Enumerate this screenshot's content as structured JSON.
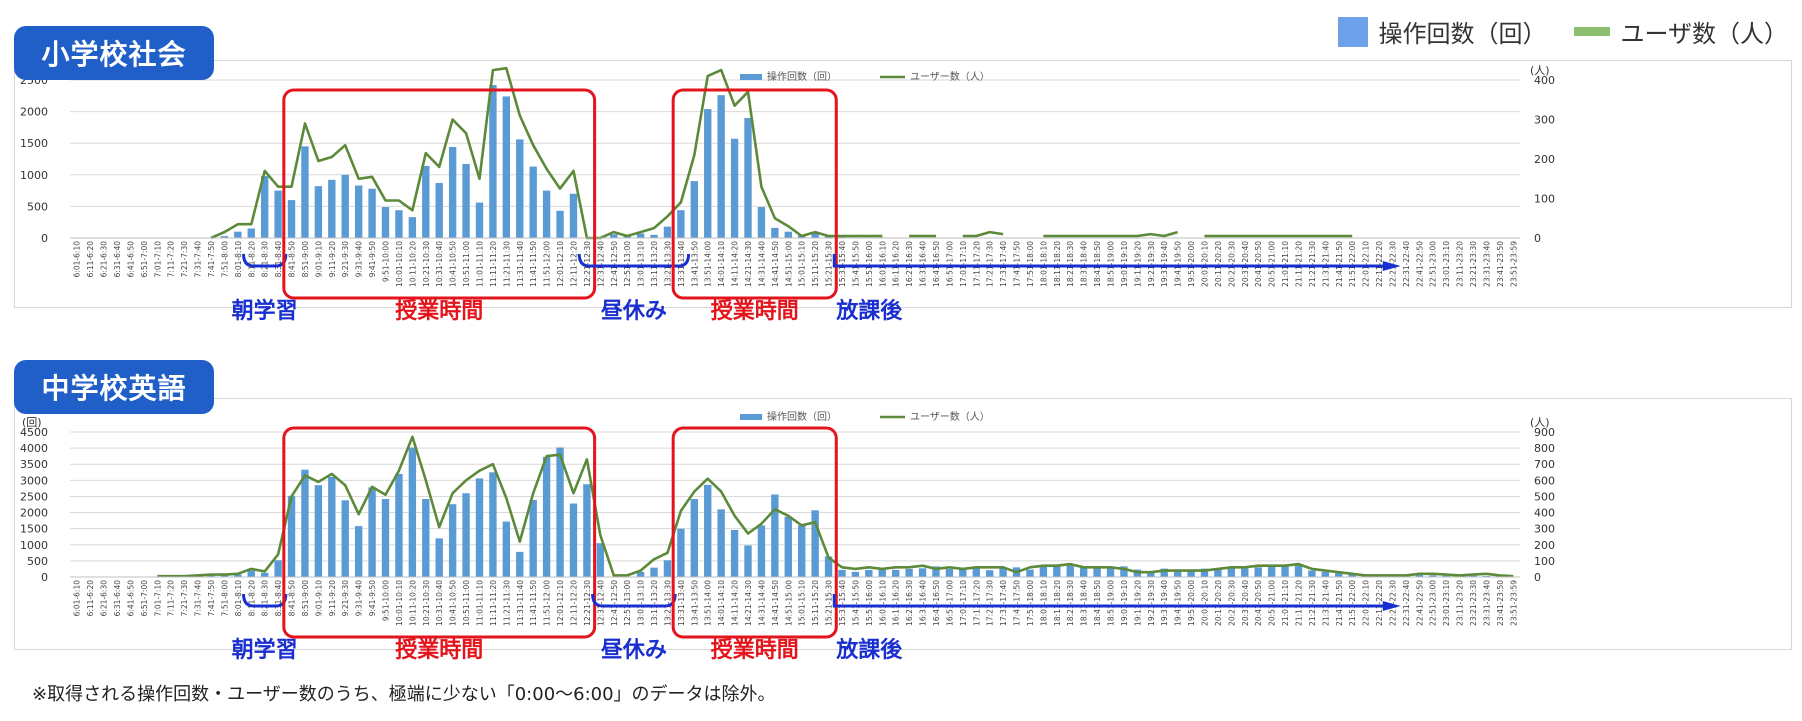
{
  "legend": {
    "ops_label": "操作回数（回）",
    "users_label": "ユーザ数（人）",
    "ops_color": "#6fa0ea",
    "users_color": "#8cc06e"
  },
  "footnote": "※取得される操作回数・ユーザー数のうち、極端に少ない「0:00〜6:00」のデータは除外。",
  "colors": {
    "badge": "#1f5fc7",
    "segment_red": "#e3141c",
    "segment_blue": "#1a2fd0",
    "bar": "#5b9bd5",
    "line": "#5c8a3a"
  },
  "chart_data": [
    {
      "title": "小学校社会",
      "type": "bar+line",
      "legend_inner": [
        "操作回数（回）",
        "ユーザー数（人）"
      ],
      "y_left_unit": "(回)",
      "y_right_unit": "(人)",
      "ylim_left": [
        0,
        2500
      ],
      "yticks_left": [
        0,
        500,
        1000,
        1500,
        2000,
        2500
      ],
      "ylim_right": [
        0,
        400
      ],
      "yticks_right": [
        0,
        100,
        200,
        300,
        400
      ],
      "categories": [
        "6:01-6:10",
        "6:11-6:20",
        "6:21-6:30",
        "6:31-6:40",
        "6:41-6:50",
        "6:51-7:00",
        "7:01-7:10",
        "7:11-7:20",
        "7:21-7:30",
        "7:31-7:40",
        "7:41-7:50",
        "7:51-8:00",
        "8:01-8:10",
        "8:11-8:20",
        "8:21-8:30",
        "8:31-8:40",
        "8:41-8:50",
        "8:51-9:00",
        "9:01-9:10",
        "9:11-9:20",
        "9:21-9:30",
        "9:31-9:40",
        "9:41-9:50",
        "9:51-10:00",
        "10:01-10:10",
        "10:11-10:20",
        "10:21-10:30",
        "10:31-10:40",
        "10:41-10:50",
        "10:51-11:00",
        "11:01-11:10",
        "11:11-11:20",
        "11:21-11:30",
        "11:31-11:40",
        "11:41-11:50",
        "11:51-12:00",
        "12:01-12:10",
        "12:11-12:20",
        "12:21-12:30",
        "12:31-12:40",
        "12:41-12:50",
        "12:51-13:00",
        "13:01-13:10",
        "13:11-13:20",
        "13:21-13:30",
        "13:31-13:40",
        "13:41-13:50",
        "13:51-14:00",
        "14:01-14:10",
        "14:11-14:20",
        "14:21-14:30",
        "14:31-14:40",
        "14:41-14:50",
        "14:51-15:00",
        "15:01-15:10",
        "15:11-15:20",
        "15:21-15:30",
        "15:31-15:40",
        "15:41-15:50",
        "15:51-16:00",
        "16:01-16:10",
        "16:11-16:20",
        "16:21-16:30",
        "16:31-16:40",
        "16:41-16:50",
        "16:51-17:00",
        "17:01-17:10",
        "17:11-17:20",
        "17:21-17:30",
        "17:31-17:40",
        "17:41-17:50",
        "17:51-18:00",
        "18:01-18:10",
        "18:11-18:20",
        "18:21-18:30",
        "18:31-18:40",
        "18:41-18:50",
        "18:51-19:00",
        "19:01-19:10",
        "19:11-19:20",
        "19:21-19:30",
        "19:31-19:40",
        "19:41-19:50",
        "19:51-20:00",
        "20:01-20:10",
        "20:11-20:20",
        "20:21-20:30",
        "20:31-20:40",
        "20:41-20:50",
        "20:51-21:00",
        "21:01-21:10",
        "21:11-21:20",
        "21:21-21:30",
        "21:31-21:40",
        "21:41-21:50",
        "21:51-22:00",
        "22:01-22:10",
        "22:11-22:20",
        "22:21-22:30",
        "22:31-22:40",
        "22:41-22:50",
        "22:51-23:00",
        "23:01-23:10",
        "23:11-23:20",
        "23:21-23:30",
        "23:31-23:40",
        "23:41-23:50",
        "23:51-23:59"
      ],
      "series": [
        {
          "name": "操作回数（回）",
          "kind": "bar",
          "axis": "left",
          "values": [
            0,
            0,
            0,
            0,
            0,
            0,
            0,
            0,
            0,
            0,
            0,
            30,
            100,
            150,
            980,
            750,
            600,
            1450,
            820,
            920,
            1000,
            830,
            780,
            490,
            440,
            330,
            1140,
            870,
            1440,
            1170,
            560,
            2420,
            2240,
            1560,
            1130,
            750,
            430,
            700,
            0,
            0,
            60,
            50,
            70,
            50,
            180,
            440,
            900,
            2040,
            2260,
            1570,
            1900,
            490,
            160,
            100,
            40,
            90,
            40,
            20,
            10,
            10,
            10,
            5,
            5,
            5,
            5,
            5,
            5,
            5,
            5,
            5,
            5,
            5,
            5,
            5,
            5,
            5,
            5,
            5,
            5,
            5,
            5,
            5,
            5,
            5,
            5,
            5,
            5,
            5,
            5,
            5,
            5,
            5,
            5,
            5,
            5,
            5,
            0,
            0,
            0,
            0,
            0,
            0,
            0,
            0,
            0,
            0,
            0,
            0
          ]
        },
        {
          "name": "ユーザー数（人）",
          "kind": "line",
          "axis": "right",
          "values": [
            null,
            null,
            null,
            null,
            null,
            null,
            null,
            null,
            null,
            null,
            0,
            15,
            35,
            35,
            170,
            130,
            130,
            290,
            195,
            205,
            235,
            150,
            155,
            95,
            95,
            70,
            215,
            180,
            300,
            265,
            150,
            425,
            430,
            310,
            235,
            175,
            125,
            170,
            0,
            0,
            15,
            5,
            15,
            25,
            55,
            90,
            210,
            410,
            425,
            335,
            370,
            130,
            50,
            30,
            5,
            15,
            5,
            5,
            5,
            5,
            5,
            null,
            5,
            5,
            5,
            null,
            5,
            5,
            15,
            10,
            null,
            null,
            5,
            5,
            5,
            5,
            5,
            5,
            5,
            5,
            10,
            5,
            15,
            null,
            5,
            5,
            5,
            5,
            5,
            5,
            5,
            5,
            5,
            5,
            5,
            5,
            null,
            null,
            null,
            null,
            null,
            null,
            null,
            null,
            null,
            null,
            null,
            null
          ]
        }
      ],
      "segments": [
        {
          "label": "朝学習",
          "color": "blue",
          "start": "8:11-8:20",
          "end": "8:31-8:40"
        },
        {
          "label": "授業時間",
          "color": "red",
          "start": "8:41-8:50",
          "end": "12:21-12:30"
        },
        {
          "label": "昼休み",
          "color": "blue",
          "start": "12:21-12:30",
          "end": "13:31-13:40"
        },
        {
          "label": "授業時間",
          "color": "red",
          "start": "13:31-13:40",
          "end": "15:21-15:30"
        },
        {
          "label": "放課後",
          "color": "blue",
          "start": "15:31-15:40",
          "end": "22:11-22:20",
          "arrow": true
        }
      ]
    },
    {
      "title": "中学校英語",
      "type": "bar+line",
      "legend_inner": [
        "操作回数（回）",
        "ユーザー数（人）"
      ],
      "y_left_unit": "(回)",
      "y_right_unit": "(人)",
      "ylim_left": [
        0,
        4500
      ],
      "yticks_left": [
        0,
        500,
        1000,
        1500,
        2000,
        2500,
        3000,
        3500,
        4000,
        4500
      ],
      "ylim_right": [
        0,
        900
      ],
      "yticks_right": [
        0,
        100,
        200,
        300,
        400,
        500,
        600,
        700,
        800,
        900
      ],
      "categories": [
        "6:01-6:10",
        "6:11-6:20",
        "6:21-6:30",
        "6:31-6:40",
        "6:41-6:50",
        "6:51-7:00",
        "7:01-7:10",
        "7:11-7:20",
        "7:21-7:30",
        "7:31-7:40",
        "7:41-7:50",
        "7:51-8:00",
        "8:01-8:10",
        "8:11-8:20",
        "8:21-8:30",
        "8:31-8:40",
        "8:41-8:50",
        "8:51-9:00",
        "9:01-9:10",
        "9:11-9:20",
        "9:21-9:30",
        "9:31-9:40",
        "9:41-9:50",
        "9:51-10:00",
        "10:01-10:10",
        "10:11-10:20",
        "10:21-10:30",
        "10:31-10:40",
        "10:41-10:50",
        "10:51-11:00",
        "11:01-11:10",
        "11:11-11:20",
        "11:21-11:30",
        "11:31-11:40",
        "11:41-11:50",
        "11:51-12:00",
        "12:01-12:10",
        "12:11-12:20",
        "12:21-12:30",
        "12:31-12:40",
        "12:41-12:50",
        "12:51-13:00",
        "13:01-13:10",
        "13:11-13:20",
        "13:21-13:30",
        "13:31-13:40",
        "13:41-13:50",
        "13:51-14:00",
        "14:01-14:10",
        "14:11-14:20",
        "14:21-14:30",
        "14:31-14:40",
        "14:41-14:50",
        "14:51-15:00",
        "15:01-15:10",
        "15:11-15:20",
        "15:21-15:30",
        "15:31-15:40",
        "15:41-15:50",
        "15:51-16:00",
        "16:01-16:10",
        "16:11-16:20",
        "16:21-16:30",
        "16:31-16:40",
        "16:41-16:50",
        "16:51-17:00",
        "17:01-17:10",
        "17:11-17:20",
        "17:21-17:30",
        "17:31-17:40",
        "17:41-17:50",
        "17:51-18:00",
        "18:01-18:10",
        "18:11-18:20",
        "18:21-18:30",
        "18:31-18:40",
        "18:41-18:50",
        "18:51-19:00",
        "19:01-19:10",
        "19:11-19:20",
        "19:21-19:30",
        "19:31-19:40",
        "19:41-19:50",
        "19:51-20:00",
        "20:01-20:10",
        "20:11-20:20",
        "20:21-20:30",
        "20:31-20:40",
        "20:41-20:50",
        "20:51-21:00",
        "21:01-21:10",
        "21:11-21:20",
        "21:21-21:30",
        "21:31-21:40",
        "21:41-21:50",
        "21:51-22:00",
        "22:01-22:10",
        "22:11-22:20",
        "22:21-22:30",
        "22:31-22:40",
        "22:41-22:50",
        "22:51-23:00",
        "23:01-23:10",
        "23:11-23:20",
        "23:21-23:30",
        "23:31-23:40",
        "23:41-23:50",
        "23:51-23:59"
      ],
      "series": [
        {
          "name": "操作回数（回）",
          "kind": "bar",
          "axis": "left",
          "values": [
            0,
            0,
            0,
            0,
            0,
            0,
            10,
            10,
            20,
            30,
            50,
            60,
            80,
            200,
            130,
            520,
            2520,
            3330,
            2850,
            3110,
            2380,
            1580,
            2780,
            2420,
            3200,
            4020,
            2420,
            1200,
            2260,
            2600,
            3060,
            3250,
            1720,
            780,
            2390,
            3730,
            4020,
            2280,
            2880,
            1050,
            0,
            20,
            160,
            290,
            520,
            1500,
            2420,
            2860,
            2100,
            1460,
            980,
            1600,
            2560,
            1870,
            1600,
            2070,
            640,
            220,
            160,
            220,
            220,
            220,
            250,
            270,
            330,
            250,
            280,
            300,
            210,
            270,
            300,
            230,
            330,
            330,
            360,
            330,
            330,
            300,
            330,
            230,
            140,
            260,
            210,
            200,
            260,
            270,
            300,
            290,
            300,
            320,
            330,
            380,
            200,
            160,
            120,
            90,
            60,
            40,
            40,
            60,
            60,
            50,
            40,
            40,
            40,
            30,
            20,
            10
          ]
        },
        {
          "name": "ユーザー数（人）",
          "kind": "line",
          "axis": "right",
          "values": [
            null,
            null,
            null,
            null,
            null,
            null,
            5,
            5,
            5,
            10,
            15,
            15,
            20,
            50,
            35,
            140,
            500,
            630,
            590,
            640,
            570,
            390,
            560,
            510,
            660,
            870,
            600,
            310,
            520,
            600,
            660,
            700,
            490,
            220,
            520,
            750,
            760,
            520,
            730,
            260,
            10,
            10,
            40,
            110,
            150,
            410,
            530,
            610,
            530,
            380,
            270,
            330,
            420,
            380,
            320,
            340,
            120,
            60,
            50,
            60,
            50,
            60,
            60,
            70,
            50,
            60,
            50,
            60,
            60,
            60,
            30,
            60,
            70,
            70,
            80,
            60,
            60,
            60,
            50,
            30,
            30,
            40,
            40,
            40,
            40,
            50,
            60,
            60,
            70,
            70,
            70,
            80,
            50,
            40,
            30,
            20,
            10,
            10,
            10,
            10,
            20,
            20,
            15,
            10,
            15,
            20,
            10,
            5
          ]
        }
      ],
      "segments": [
        {
          "label": "朝学習",
          "color": "blue",
          "start": "8:11-8:20",
          "end": "8:31-8:40"
        },
        {
          "label": "授業時間",
          "color": "red",
          "start": "8:41-8:50",
          "end": "12:21-12:30"
        },
        {
          "label": "昼休み",
          "color": "blue",
          "start": "12:31-12:40",
          "end": "13:21-13:30"
        },
        {
          "label": "授業時間",
          "color": "red",
          "start": "13:31-13:40",
          "end": "15:21-15:30"
        },
        {
          "label": "放課後",
          "color": "blue",
          "start": "15:31-15:40",
          "end": "22:11-22:20",
          "arrow": true
        }
      ]
    }
  ]
}
